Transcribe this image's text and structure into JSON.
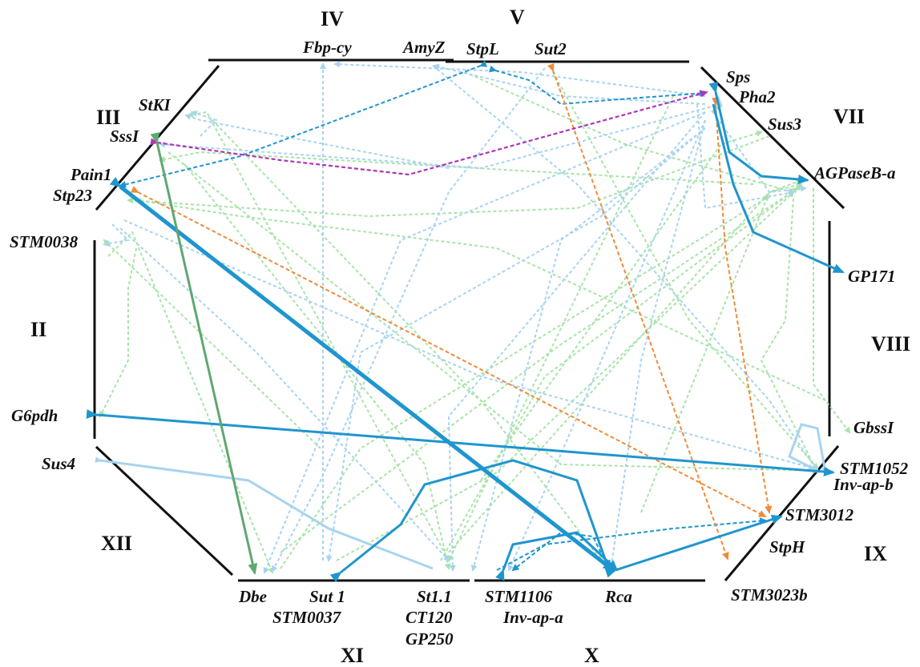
{
  "chromosomes": [
    "III",
    "IV",
    "V",
    "VII",
    "VIII",
    "IX",
    "X",
    "XI",
    "XII",
    "II"
  ],
  "genes": {
    "stki": "StKI",
    "sss1": "SssI",
    "pain1": "Pain1",
    "stp23": "Stp23",
    "stm0038": "STM0038",
    "g6pdh": "G6pdh",
    "sus4": "Sus4",
    "fbpcy": "Fbp-cy",
    "amyz": "AmyZ",
    "stpl": "StpL",
    "sut2": "Sut2",
    "sps": "Sps",
    "pha2": "Pha2",
    "sus3": "Sus3",
    "agpaseba": "AGPaseB-a",
    "gp171": "GP171",
    "gbss1": "GbssI",
    "stm1052": "STM1052",
    "invapb": "Inv-ap-b",
    "stm3012": "STM3012",
    "stph": "StpH",
    "stm3023b": "STM3023b",
    "dbe": "Dbe",
    "sut1": "Sut 1",
    "stm0037": "STM0037",
    "st11": "St1.1",
    "ct120": "CT120",
    "gp250": "GP250",
    "stm1106": "STM1106",
    "invapa": "Inv-ap-a",
    "rca": "Rca"
  },
  "colors": {
    "strong_blue": "#1f95cf",
    "light_blue": "#a8d4ef",
    "light_green": "#a8e4a8",
    "strong_green": "#5fa870",
    "orange": "#f08a3a",
    "magenta": "#b034b8"
  }
}
